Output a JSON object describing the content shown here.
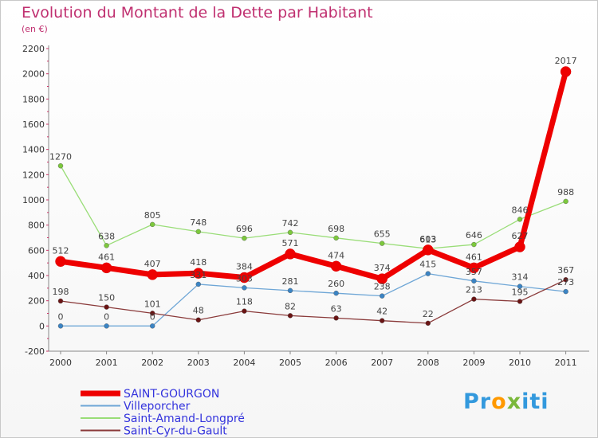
{
  "header": {
    "title": "Evolution du Montant de la Dette par Habitant",
    "unit": "(en €)"
  },
  "chart_data": {
    "type": "line",
    "title": "Evolution du Montant de la Dette par Habitant",
    "ylabel": "(en €)",
    "xlabel": "",
    "x": [
      "2000",
      "2001",
      "2002",
      "2003",
      "2004",
      "2005",
      "2006",
      "2007",
      "2008",
      "2009",
      "2010",
      "2011"
    ],
    "ylim": [
      -200,
      2200
    ],
    "yticks": [
      -200,
      0,
      200,
      400,
      600,
      800,
      1000,
      1200,
      1400,
      1600,
      1800,
      2000,
      2200
    ],
    "grid": false,
    "legend": "bottom-left",
    "series": [
      {
        "name": "SAINT-GOURGON",
        "color": "#ee0000",
        "emphasis": true,
        "values": [
          512,
          461,
          407,
          418,
          384,
          571,
          474,
          374,
          603,
          461,
          627,
          2017
        ]
      },
      {
        "name": "Villeporcher",
        "color": "#6ea6d6",
        "point_color": "#3b84c4",
        "values": [
          0,
          0,
          0,
          331,
          303,
          281,
          260,
          238,
          415,
          357,
          314,
          273
        ]
      },
      {
        "name": "Saint-Amand-Longpré",
        "color": "#99dd77",
        "point_color": "#7cc83c",
        "values": [
          1270,
          638,
          805,
          748,
          696,
          742,
          698,
          655,
          613,
          646,
          846,
          988
        ]
      },
      {
        "name": "Saint-Cyr-du-Gault",
        "color": "#8a3a3a",
        "point_color": "#6a1414",
        "values": [
          198,
          150,
          101,
          48,
          118,
          82,
          63,
          42,
          22,
          213,
          195,
          367
        ]
      }
    ]
  },
  "legend": {
    "items": [
      "SAINT-GOURGON",
      "Villeporcher",
      "Saint-Amand-Longpré",
      "Saint-Cyr-du-Gault"
    ],
    "text_color": "#3333dd"
  },
  "logo": {
    "text": "Proxiti",
    "letters": [
      "P",
      "r",
      "o",
      "x",
      "i",
      "t",
      "i"
    ],
    "colors": [
      "#3399dd",
      "#3399dd",
      "#ff9900",
      "#7ab83a",
      "#3399dd",
      "#3399dd",
      "#3399dd"
    ]
  }
}
